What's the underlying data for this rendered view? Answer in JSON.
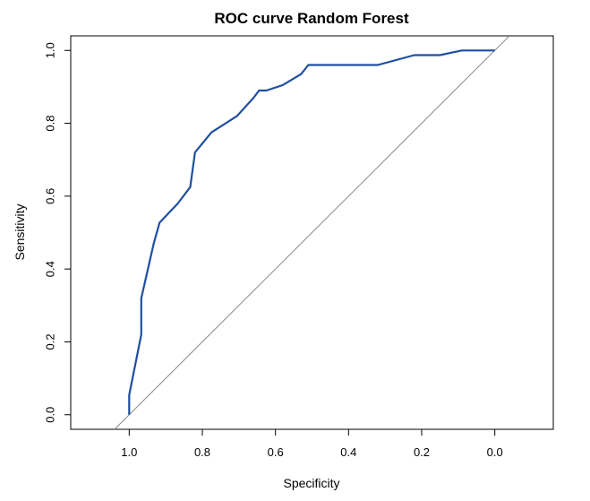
{
  "chart_data": {
    "type": "line",
    "title": "ROC curve Random Forest",
    "xlabel": "Specificity",
    "ylabel": "Sensitivity",
    "x_reversed": true,
    "xlim": [
      1.16,
      -0.16
    ],
    "ylim": [
      -0.04,
      1.04
    ],
    "x_ticks": [
      1.0,
      0.8,
      0.6,
      0.4,
      0.2,
      0.0
    ],
    "x_tick_labels": [
      "1.0",
      "0.8",
      "0.6",
      "0.4",
      "0.2",
      "0.0"
    ],
    "y_ticks": [
      0.0,
      0.2,
      0.4,
      0.6,
      0.8,
      1.0
    ],
    "y_tick_labels": [
      "0.0",
      "0.2",
      "0.4",
      "0.6",
      "0.8",
      "1.0"
    ],
    "grid": false,
    "series": [
      {
        "color": "#1f4fa0",
        "points": [
          [
            1.0,
            0.0
          ],
          [
            1.0,
            0.054
          ],
          [
            0.967,
            0.22
          ],
          [
            0.967,
            0.32
          ],
          [
            0.933,
            0.47
          ],
          [
            0.917,
            0.527
          ],
          [
            0.867,
            0.58
          ],
          [
            0.833,
            0.625
          ],
          [
            0.82,
            0.72
          ],
          [
            0.775,
            0.775
          ],
          [
            0.705,
            0.82
          ],
          [
            0.66,
            0.87
          ],
          [
            0.645,
            0.89
          ],
          [
            0.625,
            0.89
          ],
          [
            0.58,
            0.905
          ],
          [
            0.53,
            0.935
          ],
          [
            0.51,
            0.96
          ],
          [
            0.32,
            0.96
          ],
          [
            0.22,
            0.987
          ],
          [
            0.15,
            0.987
          ],
          [
            0.09,
            1.0
          ],
          [
            0.0,
            1.0
          ]
        ]
      }
    ],
    "reference_line": {
      "color": "#888888",
      "from": [
        1.04,
        -0.04
      ],
      "to": [
        -0.04,
        1.04
      ]
    }
  }
}
